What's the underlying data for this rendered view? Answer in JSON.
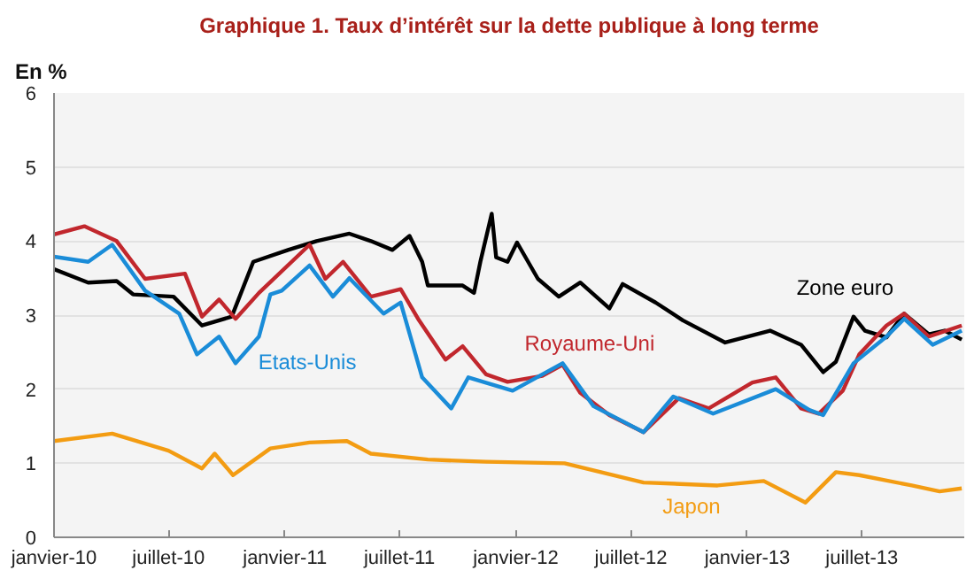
{
  "chart_data": {
    "type": "line",
    "title": "Graphique 1. Taux d’intérêt sur la dette publique à long terme",
    "ylabel": "En %",
    "xlim": [
      "2010-01-01",
      "2013-12-10"
    ],
    "ylim": [
      0,
      6
    ],
    "yticks": [
      0,
      1,
      2,
      3,
      4,
      5,
      6
    ],
    "xticks": [
      {
        "value": "2010-01-01",
        "label": "janvier-10"
      },
      {
        "value": "2010-07-01",
        "label": "juillet-10"
      },
      {
        "value": "2011-01-01",
        "label": "janvier-11"
      },
      {
        "value": "2011-07-01",
        "label": "juillet-11"
      },
      {
        "value": "2012-01-01",
        "label": "janvier-12"
      },
      {
        "value": "2012-07-01",
        "label": "juillet-12"
      },
      {
        "value": "2013-01-01",
        "label": "janvier-13"
      },
      {
        "value": "2013-07-01",
        "label": "juillet-13"
      }
    ],
    "grid": "y",
    "line_style": "solid",
    "series": [
      {
        "name": "Zone euro",
        "color": "#000000",
        "x": [
          "2010-01-01",
          "2010-02-24",
          "2010-04-10",
          "2010-05-06",
          "2010-07-09",
          "2010-08-23",
          "2010-10-09",
          "2010-11-12",
          "2011-01-06",
          "2011-02-20",
          "2011-04-13",
          "2011-05-17",
          "2011-06-20",
          "2011-07-17",
          "2011-08-06",
          "2011-08-15",
          "2011-10-09",
          "2011-10-27",
          "2011-11-06",
          "2011-11-24",
          "2011-12-01",
          "2011-12-19",
          "2012-01-03",
          "2012-02-05",
          "2012-03-09",
          "2012-04-12",
          "2012-05-28",
          "2012-06-18",
          "2012-08-09",
          "2012-09-21",
          "2012-11-27",
          "2013-02-06",
          "2013-03-27",
          "2013-05-01",
          "2013-05-21",
          "2013-06-18",
          "2013-07-06",
          "2013-08-09",
          "2013-09-06",
          "2013-10-15",
          "2013-11-09",
          "2013-12-06"
        ],
        "values": [
          3.62,
          3.44,
          3.46,
          3.28,
          3.25,
          2.86,
          2.98,
          3.72,
          3.88,
          4.0,
          4.1,
          4.0,
          3.88,
          4.07,
          3.72,
          3.4,
          3.4,
          3.3,
          3.72,
          4.37,
          3.78,
          3.72,
          3.98,
          3.49,
          3.25,
          3.44,
          3.09,
          3.42,
          3.17,
          2.93,
          2.63,
          2.79,
          2.6,
          2.23,
          2.37,
          2.98,
          2.79,
          2.7,
          3.02,
          2.74,
          2.79,
          2.67
        ]
      },
      {
        "name": "Royaume-Uni",
        "color": "#c1272d",
        "x": [
          "2010-01-01",
          "2010-02-18",
          "2010-04-10",
          "2010-05-25",
          "2010-07-27",
          "2010-08-23",
          "2010-09-19",
          "2010-10-15",
          "2010-11-21",
          "2011-02-09",
          "2011-03-06",
          "2011-04-03",
          "2011-05-17",
          "2011-07-03",
          "2011-08-01",
          "2011-09-12",
          "2011-10-09",
          "2011-11-15",
          "2011-12-19",
          "2012-02-12",
          "2012-03-15",
          "2012-04-12",
          "2012-05-28",
          "2012-07-21",
          "2012-09-15",
          "2012-11-01",
          "2013-01-09",
          "2013-02-15",
          "2013-03-27",
          "2013-04-24",
          "2013-06-01",
          "2013-06-27",
          "2013-08-09",
          "2013-09-06",
          "2013-10-15",
          "2013-12-06"
        ],
        "values": [
          4.09,
          4.2,
          4.0,
          3.49,
          3.56,
          2.98,
          3.21,
          2.95,
          3.3,
          3.95,
          3.49,
          3.72,
          3.25,
          3.35,
          2.93,
          2.4,
          2.58,
          2.2,
          2.1,
          2.18,
          2.33,
          1.95,
          1.65,
          1.42,
          1.88,
          1.74,
          2.09,
          2.16,
          1.74,
          1.67,
          1.98,
          2.47,
          2.86,
          3.02,
          2.71,
          2.86
        ]
      },
      {
        "name": "Etats-Unis",
        "color": "#1a8cd8",
        "x": [
          "2010-01-01",
          "2010-02-24",
          "2010-04-03",
          "2010-05-25",
          "2010-07-18",
          "2010-08-15",
          "2010-09-19",
          "2010-10-15",
          "2010-11-21",
          "2010-12-09",
          "2010-12-27",
          "2011-02-09",
          "2011-03-18",
          "2011-04-13",
          "2011-06-06",
          "2011-07-03",
          "2011-08-06",
          "2011-09-21",
          "2011-10-18",
          "2011-12-27",
          "2012-03-15",
          "2012-05-03",
          "2012-07-21",
          "2012-09-06",
          "2012-11-08",
          "2013-02-15",
          "2013-04-09",
          "2013-05-01",
          "2013-06-18",
          "2013-08-09",
          "2013-09-06",
          "2013-10-21",
          "2013-12-06"
        ],
        "values": [
          3.79,
          3.72,
          3.95,
          3.33,
          3.02,
          2.47,
          2.71,
          2.35,
          2.71,
          3.28,
          3.33,
          3.67,
          3.25,
          3.5,
          3.02,
          3.17,
          2.16,
          1.74,
          2.16,
          1.98,
          2.35,
          1.77,
          1.42,
          1.9,
          1.67,
          2.0,
          1.72,
          1.65,
          2.35,
          2.71,
          2.95,
          2.6,
          2.79
        ]
      },
      {
        "name": "Japon",
        "color": "#f39c12",
        "x": [
          "2010-01-01",
          "2010-04-03",
          "2010-07-01",
          "2010-08-23",
          "2010-09-12",
          "2010-10-11",
          "2010-12-09",
          "2011-02-09",
          "2011-04-09",
          "2011-05-17",
          "2011-08-15",
          "2011-11-15",
          "2012-03-18",
          "2012-07-21",
          "2012-11-15",
          "2013-01-27",
          "2013-04-03",
          "2013-05-21",
          "2013-06-27",
          "2013-09-18",
          "2013-11-01",
          "2013-12-06"
        ],
        "values": [
          1.3,
          1.4,
          1.17,
          0.93,
          1.13,
          0.84,
          1.2,
          1.28,
          1.3,
          1.13,
          1.05,
          1.02,
          1.0,
          0.74,
          0.7,
          0.76,
          0.47,
          0.88,
          0.84,
          0.7,
          0.62,
          0.66
        ]
      }
    ]
  }
}
